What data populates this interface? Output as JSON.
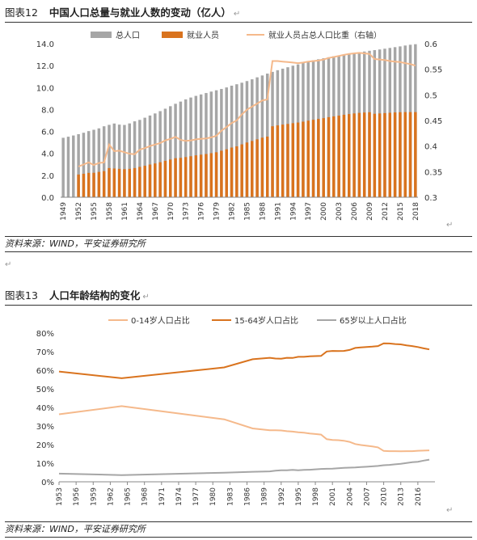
{
  "page": {
    "return_mark": "↵",
    "chart1": {
      "figure_label": "图表12",
      "title": "中国人口总量与就业人数的变动（亿人）",
      "source": "资料来源：WIND，平安证券研究所"
    },
    "chart2": {
      "figure_label": "图表13",
      "title": "人口年龄结构的变化",
      "source": "资料来源：WIND，平安证券研究所"
    }
  },
  "chart_data": [
    {
      "type": "bar",
      "title": "中国人口总量与就业人数的变动（亿人）",
      "x": [
        1949,
        1950,
        1951,
        1952,
        1953,
        1954,
        1955,
        1956,
        1957,
        1958,
        1959,
        1960,
        1961,
        1962,
        1963,
        1964,
        1965,
        1966,
        1967,
        1968,
        1969,
        1970,
        1971,
        1972,
        1973,
        1974,
        1975,
        1976,
        1977,
        1978,
        1979,
        1980,
        1981,
        1982,
        1983,
        1984,
        1985,
        1986,
        1987,
        1988,
        1989,
        1990,
        1991,
        1992,
        1993,
        1994,
        1995,
        1996,
        1997,
        1998,
        1999,
        2000,
        2001,
        2002,
        2003,
        2004,
        2005,
        2006,
        2007,
        2008,
        2009,
        2010,
        2011,
        2012,
        2013,
        2014,
        2015,
        2016,
        2017,
        2018
      ],
      "x_tick_labels": [
        "1949",
        "1952",
        "1955",
        "1958",
        "1961",
        "1964",
        "1967",
        "1970",
        "1973",
        "1976",
        "1979",
        "1982",
        "1985",
        "1988",
        "1991",
        "1994",
        "1997",
        "2000",
        "2003",
        "2006",
        "2009",
        "2012",
        "2015",
        "2018"
      ],
      "series": [
        {
          "name": "总人口",
          "kind": "bar",
          "axis": "left",
          "color": "#a6a6a6",
          "values": [
            5.42,
            5.52,
            5.63,
            5.75,
            5.88,
            6.03,
            6.15,
            6.28,
            6.47,
            6.6,
            6.72,
            6.62,
            6.59,
            6.73,
            6.92,
            7.05,
            7.25,
            7.45,
            7.64,
            7.85,
            8.07,
            8.3,
            8.52,
            8.72,
            8.92,
            9.09,
            9.24,
            9.37,
            9.5,
            9.63,
            9.75,
            9.87,
            10.01,
            10.17,
            10.3,
            10.44,
            10.59,
            10.75,
            10.93,
            11.1,
            11.27,
            11.43,
            11.58,
            11.72,
            11.85,
            11.99,
            12.11,
            12.24,
            12.36,
            12.48,
            12.58,
            12.67,
            12.76,
            12.85,
            12.92,
            13.0,
            13.08,
            13.14,
            13.21,
            13.28,
            13.35,
            13.41,
            13.47,
            13.54,
            13.61,
            13.68,
            13.75,
            13.83,
            13.9,
            13.95
          ]
        },
        {
          "name": "就业人员",
          "kind": "bar",
          "axis": "left",
          "color": "#d9731e",
          "values": [
            null,
            null,
            null,
            2.07,
            2.14,
            2.22,
            2.23,
            2.31,
            2.38,
            2.66,
            2.62,
            2.59,
            2.56,
            2.59,
            2.66,
            2.77,
            2.87,
            2.98,
            3.08,
            3.19,
            3.32,
            3.44,
            3.56,
            3.59,
            3.66,
            3.74,
            3.82,
            3.88,
            3.94,
            4.02,
            4.1,
            4.24,
            4.37,
            4.53,
            4.64,
            4.82,
            4.99,
            5.13,
            5.28,
            5.43,
            5.53,
            6.47,
            6.55,
            6.62,
            6.68,
            6.75,
            6.81,
            6.89,
            6.98,
            7.06,
            7.14,
            7.21,
            7.3,
            7.37,
            7.44,
            7.52,
            7.58,
            7.64,
            7.69,
            7.72,
            7.75,
            7.61,
            7.64,
            7.67,
            7.7,
            7.73,
            7.75,
            7.76,
            7.76,
            7.76
          ]
        },
        {
          "name": "就业人员占总人口比重（右轴）",
          "kind": "line",
          "axis": "right",
          "color": "#f5b98b",
          "values": [
            null,
            null,
            null,
            0.36,
            0.364,
            0.368,
            0.363,
            0.367,
            0.368,
            0.403,
            0.39,
            0.391,
            0.388,
            0.385,
            0.384,
            0.393,
            0.396,
            0.4,
            0.403,
            0.406,
            0.411,
            0.414,
            0.418,
            0.412,
            0.41,
            0.411,
            0.413,
            0.414,
            0.415,
            0.417,
            0.42,
            0.43,
            0.437,
            0.445,
            0.45,
            0.462,
            0.471,
            0.477,
            0.483,
            0.489,
            0.491,
            0.566,
            0.566,
            0.565,
            0.564,
            0.563,
            0.562,
            0.563,
            0.565,
            0.566,
            0.567,
            0.569,
            0.572,
            0.574,
            0.576,
            0.578,
            0.58,
            0.581,
            0.582,
            0.581,
            0.58,
            0.57,
            0.569,
            0.568,
            0.566,
            0.565,
            0.564,
            0.562,
            0.56,
            0.557
          ]
        }
      ],
      "ylim_left": [
        0,
        14
      ],
      "yticks_left": [
        "0.0",
        "2.0",
        "4.0",
        "6.0",
        "8.0",
        "10.0",
        "12.0",
        "14.0"
      ],
      "ylim_right": [
        0.3,
        0.6
      ],
      "yticks_right": [
        "0.3",
        "0.35",
        "0.4",
        "0.45",
        "0.5",
        "0.55",
        "0.6"
      ],
      "legend_position": "top"
    },
    {
      "type": "line",
      "title": "人口年龄结构的变化",
      "x": [
        1953,
        1964,
        1982,
        1987,
        1990,
        1991,
        1992,
        1993,
        1994,
        1995,
        1996,
        1997,
        1998,
        1999,
        2000,
        2001,
        2002,
        2003,
        2004,
        2005,
        2006,
        2007,
        2008,
        2009,
        2010,
        2011,
        2012,
        2013,
        2014,
        2015,
        2016,
        2017,
        2018
      ],
      "x_tick_labels": [
        "1953",
        "1956",
        "1959",
        "1962",
        "1965",
        "1968",
        "1971",
        "1974",
        "1977",
        "1980",
        "1983",
        "1986",
        "1989",
        "1992",
        "1995",
        "1998",
        "2001",
        "2004",
        "2007",
        "2010",
        "2013",
        "2016"
      ],
      "series": [
        {
          "name": "0-14岁人口占比",
          "color": "#f5b98b",
          "values": [
            36.3,
            40.7,
            33.6,
            28.7,
            27.7,
            27.7,
            27.6,
            27.2,
            27.0,
            26.6,
            26.4,
            26.0,
            25.7,
            25.4,
            22.9,
            22.5,
            22.4,
            22.1,
            21.5,
            20.3,
            19.8,
            19.4,
            19.0,
            18.5,
            16.6,
            16.5,
            16.5,
            16.4,
            16.5,
            16.5,
            16.7,
            16.8,
            16.9
          ]
        },
        {
          "name": "15-64岁人口占比",
          "color": "#d9731e",
          "values": [
            59.3,
            55.7,
            61.5,
            65.9,
            66.7,
            66.3,
            66.2,
            66.7,
            66.6,
            67.2,
            67.2,
            67.5,
            67.6,
            67.7,
            70.1,
            70.4,
            70.3,
            70.4,
            70.9,
            72.0,
            72.3,
            72.5,
            72.7,
            73.0,
            74.5,
            74.4,
            74.1,
            73.9,
            73.4,
            73.0,
            72.5,
            71.8,
            71.2
          ]
        },
        {
          "name": "65岁以上人口占比",
          "color": "#a6a6a6",
          "values": [
            4.4,
            3.6,
            4.9,
            5.4,
            5.6,
            6.0,
            6.2,
            6.2,
            6.4,
            6.2,
            6.4,
            6.5,
            6.7,
            6.9,
            7.0,
            7.1,
            7.3,
            7.5,
            7.6,
            7.7,
            7.9,
            8.1,
            8.3,
            8.5,
            8.9,
            9.1,
            9.4,
            9.7,
            10.1,
            10.5,
            10.8,
            11.4,
            11.9
          ]
        }
      ],
      "ylim": [
        0,
        80
      ],
      "yticks": [
        "0%",
        "10%",
        "20%",
        "30%",
        "40%",
        "50%",
        "60%",
        "70%",
        "80%"
      ],
      "legend_position": "top"
    }
  ]
}
